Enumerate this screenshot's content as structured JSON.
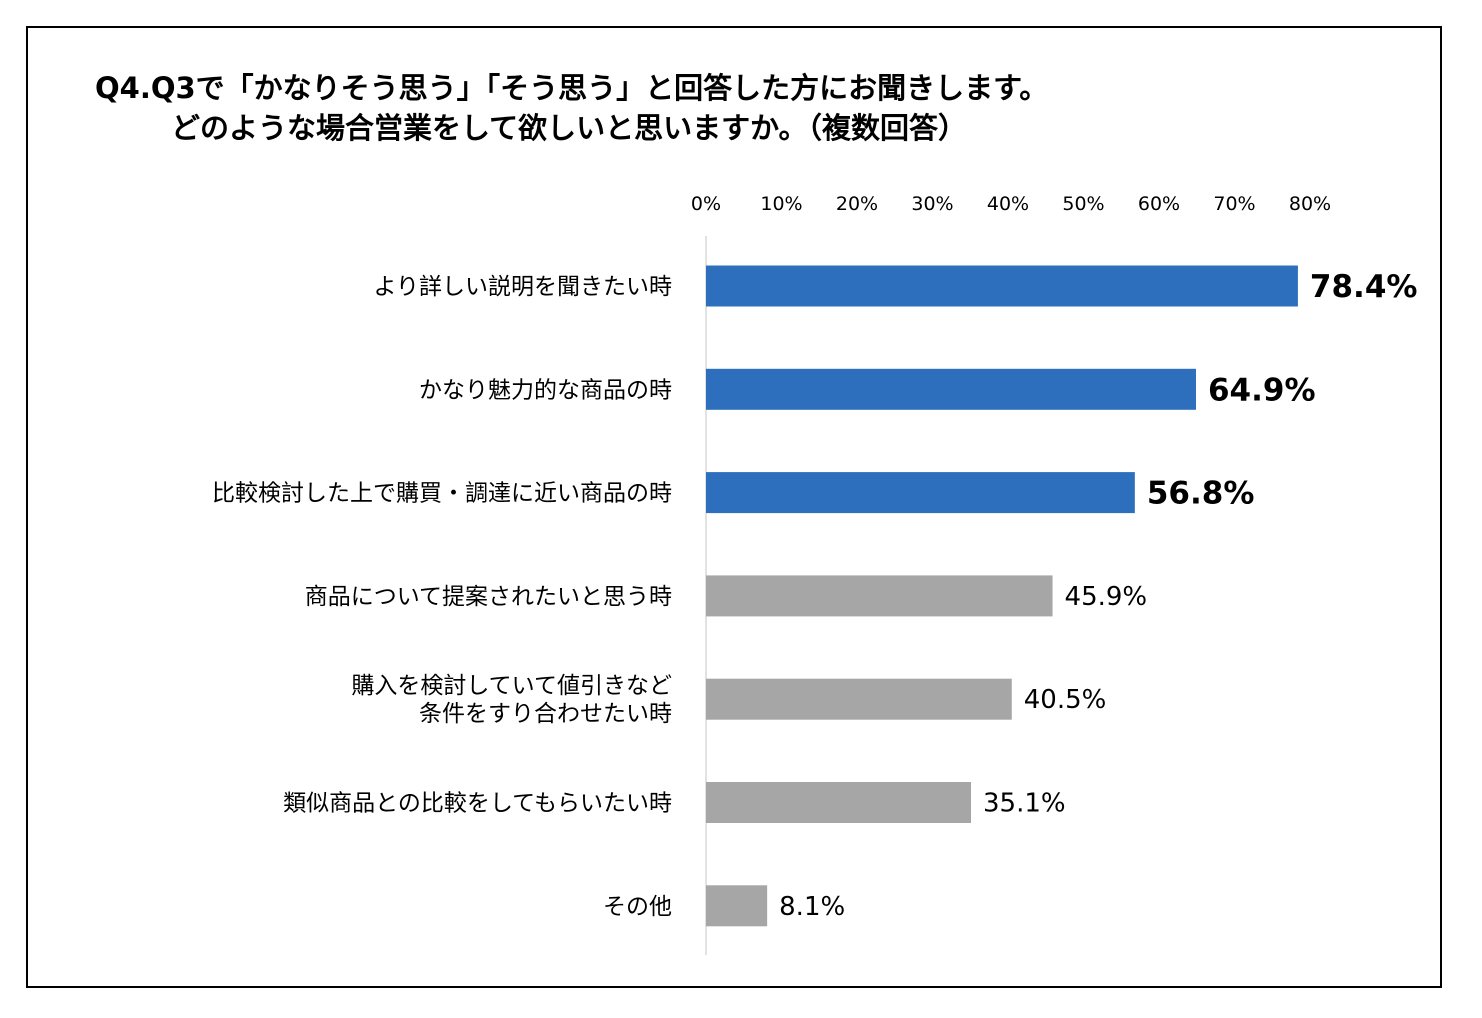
{
  "chart_data": {
    "type": "bar",
    "orientation": "horizontal",
    "title_line1": "Q4.Q3で「かなりそう思う」「そう思う」と回答した方にお聞きします。",
    "title_line2": "どのような場合営業をして欲しいと思いますか。（複数回答）",
    "xlim": [
      0,
      80
    ],
    "ticks": [
      "0%",
      "10%",
      "20%",
      "30%",
      "40%",
      "50%",
      "60%",
      "70%",
      "80%"
    ],
    "categories": [
      [
        "より詳しい説明を聞きたい時"
      ],
      [
        "かなり魅力的な商品の時"
      ],
      [
        "比較検討した上で購買・調達に近い商品の時"
      ],
      [
        "商品について提案されたいと思う時"
      ],
      [
        "購入を検討していて値引きなど",
        "条件をすり合わせたい時"
      ],
      [
        "類似商品との比較をしてもらいたい時"
      ],
      [
        "その他"
      ]
    ],
    "values": [
      78.4,
      64.9,
      56.8,
      45.9,
      40.5,
      35.1,
      8.1
    ],
    "value_labels": [
      "78.4%",
      "64.9%",
      "56.8%",
      "45.9%",
      "40.5%",
      "35.1%",
      "8.1%"
    ],
    "highlighted": [
      true,
      true,
      true,
      false,
      false,
      false,
      false
    ],
    "colors": {
      "highlight": "#2e6fbd",
      "normal": "#a6a6a6",
      "axis": "#d9d9d9"
    }
  }
}
